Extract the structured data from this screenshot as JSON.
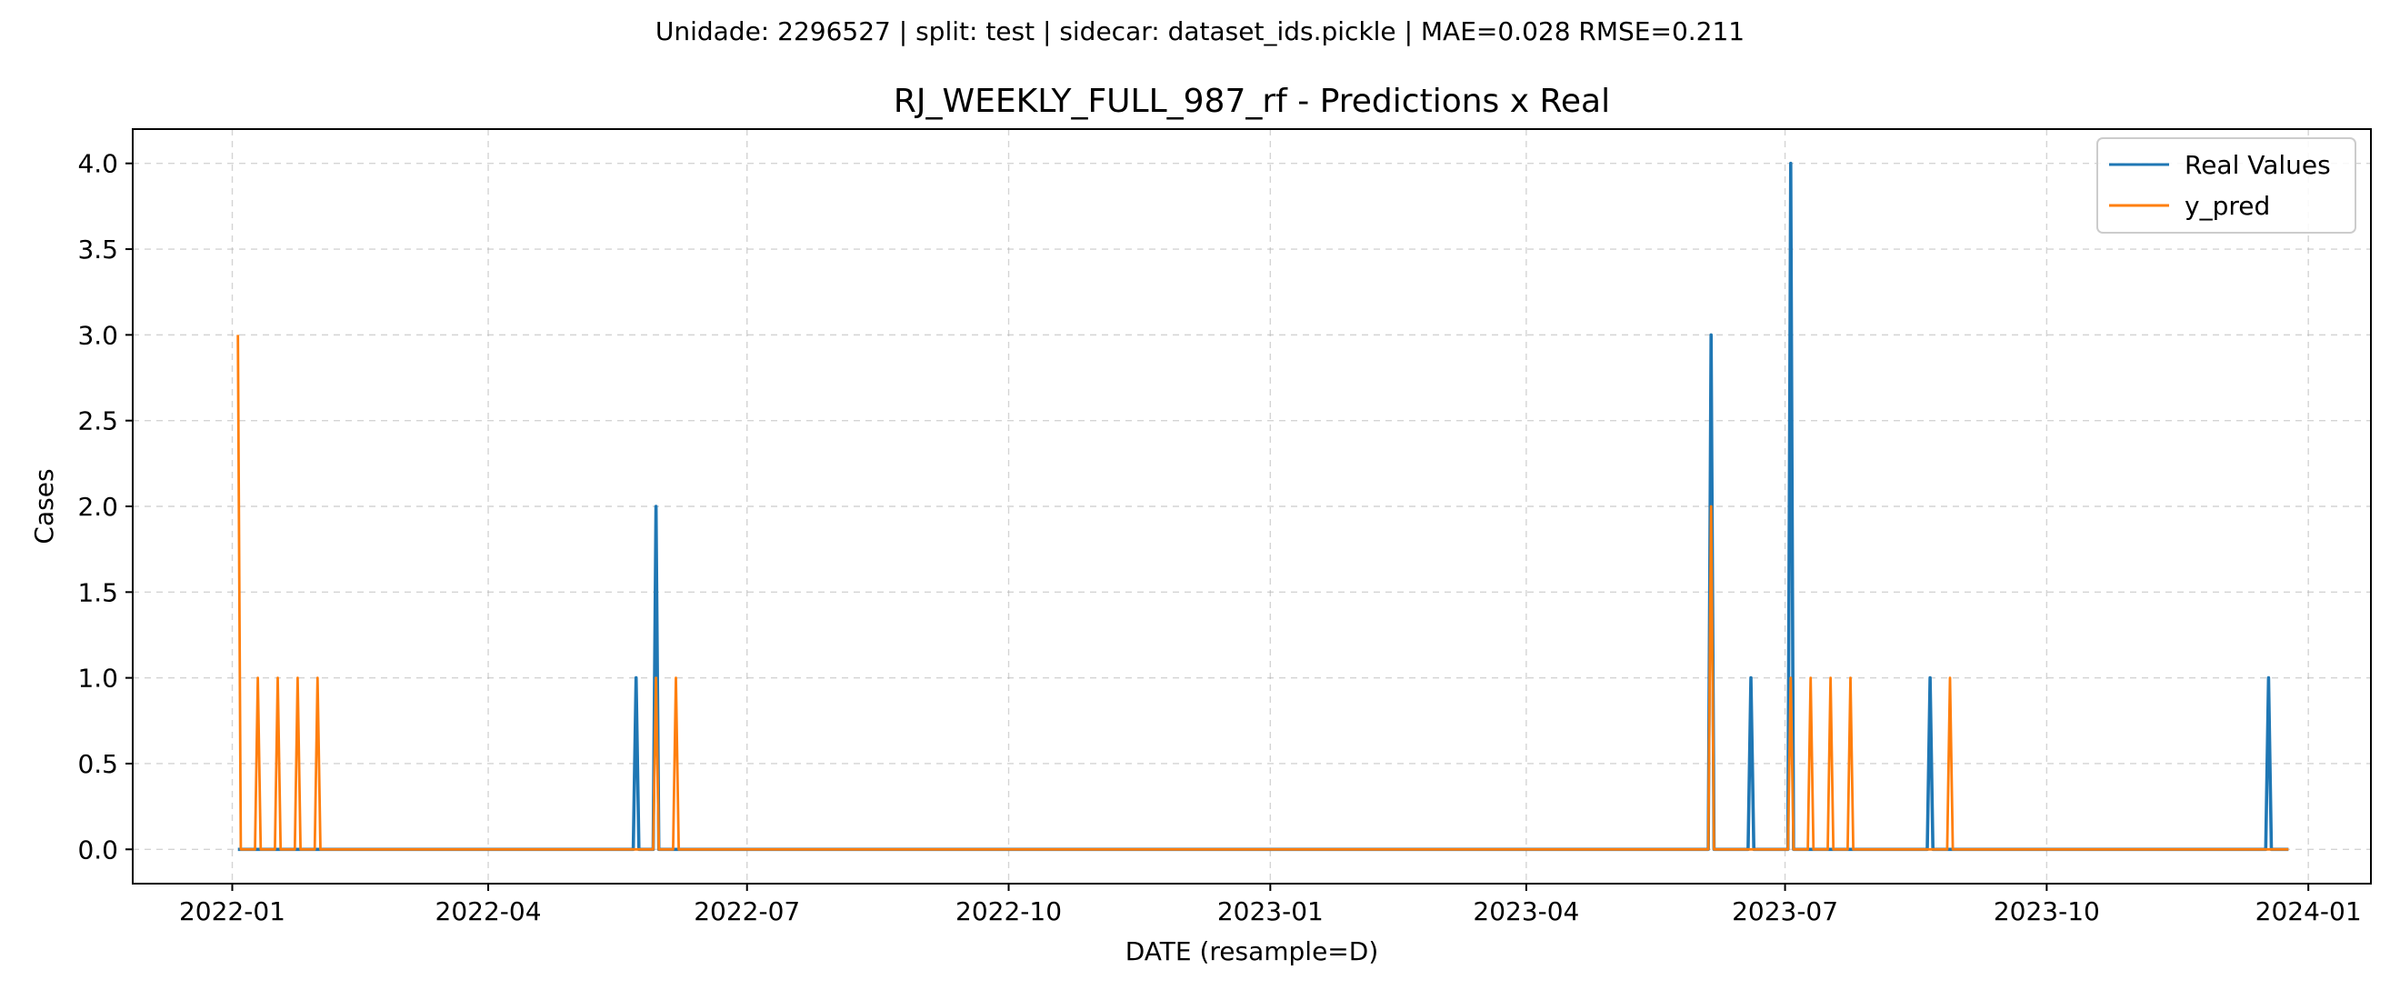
{
  "suptitle": "Unidade: 2296527 | split: test | sidecar: dataset_ids.pickle | MAE=0.028  RMSE=0.211",
  "chart_data": {
    "type": "line",
    "title": "RJ_WEEKLY_FULL_987_rf - Predictions x Real",
    "xlabel": "DATE (resample=D)",
    "ylabel": "Cases",
    "x_range": [
      "2021-11-27",
      "2024-01-23"
    ],
    "ylim": [
      -0.2,
      4.2
    ],
    "y_ticks": [
      0.0,
      0.5,
      1.0,
      1.5,
      2.0,
      2.5,
      3.0,
      3.5,
      4.0
    ],
    "y_tick_labels": [
      "0.0",
      "0.5",
      "1.0",
      "1.5",
      "2.0",
      "2.5",
      "3.0",
      "3.5",
      "4.0"
    ],
    "x_ticks": [
      "2022-01-01",
      "2022-04-01",
      "2022-07-01",
      "2022-10-01",
      "2023-01-01",
      "2023-04-01",
      "2023-07-01",
      "2023-10-01",
      "2024-01-01"
    ],
    "x_tick_labels": [
      "2022-01",
      "2022-04",
      "2022-07",
      "2022-10",
      "2023-01",
      "2023-04",
      "2023-07",
      "2023-10",
      "2024-01"
    ],
    "grid": true,
    "legend_position": "top-right",
    "series": [
      {
        "name": "Real Values",
        "color": "#1f77b4",
        "points": [
          [
            "2022-01-03",
            0
          ],
          [
            "2022-05-22",
            0
          ],
          [
            "2022-05-23",
            1
          ],
          [
            "2022-05-24",
            0
          ],
          [
            "2022-05-29",
            0
          ],
          [
            "2022-05-30",
            2
          ],
          [
            "2022-05-31",
            0
          ],
          [
            "2023-06-04",
            0
          ],
          [
            "2023-06-05",
            3
          ],
          [
            "2023-06-06",
            0
          ],
          [
            "2023-06-18",
            0
          ],
          [
            "2023-06-19",
            1
          ],
          [
            "2023-06-20",
            0
          ],
          [
            "2023-07-02",
            0
          ],
          [
            "2023-07-03",
            4
          ],
          [
            "2023-07-04",
            0
          ],
          [
            "2023-08-20",
            0
          ],
          [
            "2023-08-21",
            1
          ],
          [
            "2023-08-22",
            0
          ],
          [
            "2023-12-17",
            0
          ],
          [
            "2023-12-18",
            1
          ],
          [
            "2023-12-19",
            0
          ],
          [
            "2023-12-25",
            0
          ]
        ]
      },
      {
        "name": "y_pred",
        "color": "#ff7f0e",
        "points": [
          [
            "2022-01-03",
            3
          ],
          [
            "2022-01-04",
            0
          ],
          [
            "2022-01-09",
            0
          ],
          [
            "2022-01-10",
            1
          ],
          [
            "2022-01-11",
            0
          ],
          [
            "2022-01-16",
            0
          ],
          [
            "2022-01-17",
            1
          ],
          [
            "2022-01-18",
            0
          ],
          [
            "2022-01-23",
            0
          ],
          [
            "2022-01-24",
            1
          ],
          [
            "2022-01-25",
            0
          ],
          [
            "2022-01-30",
            0
          ],
          [
            "2022-01-31",
            1
          ],
          [
            "2022-02-01",
            0
          ],
          [
            "2022-05-29",
            0
          ],
          [
            "2022-05-30",
            1
          ],
          [
            "2022-05-31",
            0
          ],
          [
            "2022-06-05",
            0
          ],
          [
            "2022-06-06",
            1
          ],
          [
            "2022-06-07",
            0
          ],
          [
            "2023-06-04",
            0
          ],
          [
            "2023-06-05",
            2
          ],
          [
            "2023-06-06",
            0
          ],
          [
            "2023-07-02",
            0
          ],
          [
            "2023-07-03",
            1
          ],
          [
            "2023-07-04",
            0
          ],
          [
            "2023-07-09",
            0
          ],
          [
            "2023-07-10",
            1
          ],
          [
            "2023-07-11",
            0
          ],
          [
            "2023-07-16",
            0
          ],
          [
            "2023-07-17",
            1
          ],
          [
            "2023-07-18",
            0
          ],
          [
            "2023-07-23",
            0
          ],
          [
            "2023-07-24",
            1
          ],
          [
            "2023-07-25",
            0
          ],
          [
            "2023-08-27",
            0
          ],
          [
            "2023-08-28",
            1
          ],
          [
            "2023-08-29",
            0
          ],
          [
            "2023-12-25",
            0
          ]
        ]
      }
    ]
  }
}
